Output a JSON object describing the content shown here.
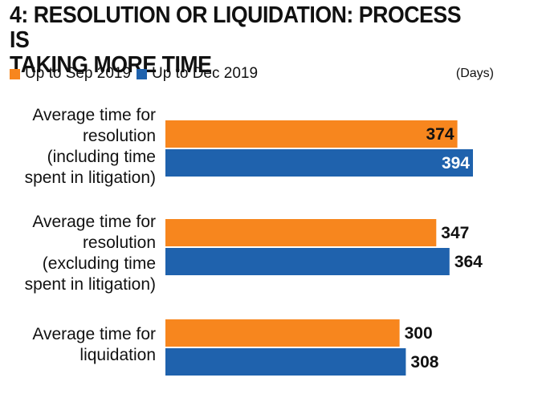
{
  "title": "4: RESOLUTION OR LIQUIDATION: PROCESS IS\nTAKING MORE TIME",
  "unit_label": "(Days)",
  "colors": {
    "orange": "#f7861e",
    "blue": "#1f62ad"
  },
  "chart_data": {
    "type": "bar",
    "orientation": "horizontal",
    "title": "4: RESOLUTION OR LIQUIDATION: PROCESS IS TAKING MORE TIME",
    "unit": "(Days)",
    "categories": [
      "Average time for resolution (including time spent in litigation)",
      "Average time for resolution (excluding time spent in litigation)",
      "Average time for liquidation"
    ],
    "category_labels": [
      "Average time for\nresolution\n(including time\nspent in litigation)",
      "Average time for\nresolution\n(excluding time\nspent in litigation)",
      "Average time for\nliquidation"
    ],
    "series": [
      {
        "name": "Up to Sep 2019",
        "color": "#f7861e",
        "values": [
          374,
          347,
          300
        ]
      },
      {
        "name": "Up to Dec 2019",
        "color": "#1f62ad",
        "values": [
          394,
          364,
          308
        ]
      }
    ],
    "xlim": [
      0,
      394
    ],
    "grid": false,
    "legend_position": "top-left",
    "data_labels": true
  }
}
